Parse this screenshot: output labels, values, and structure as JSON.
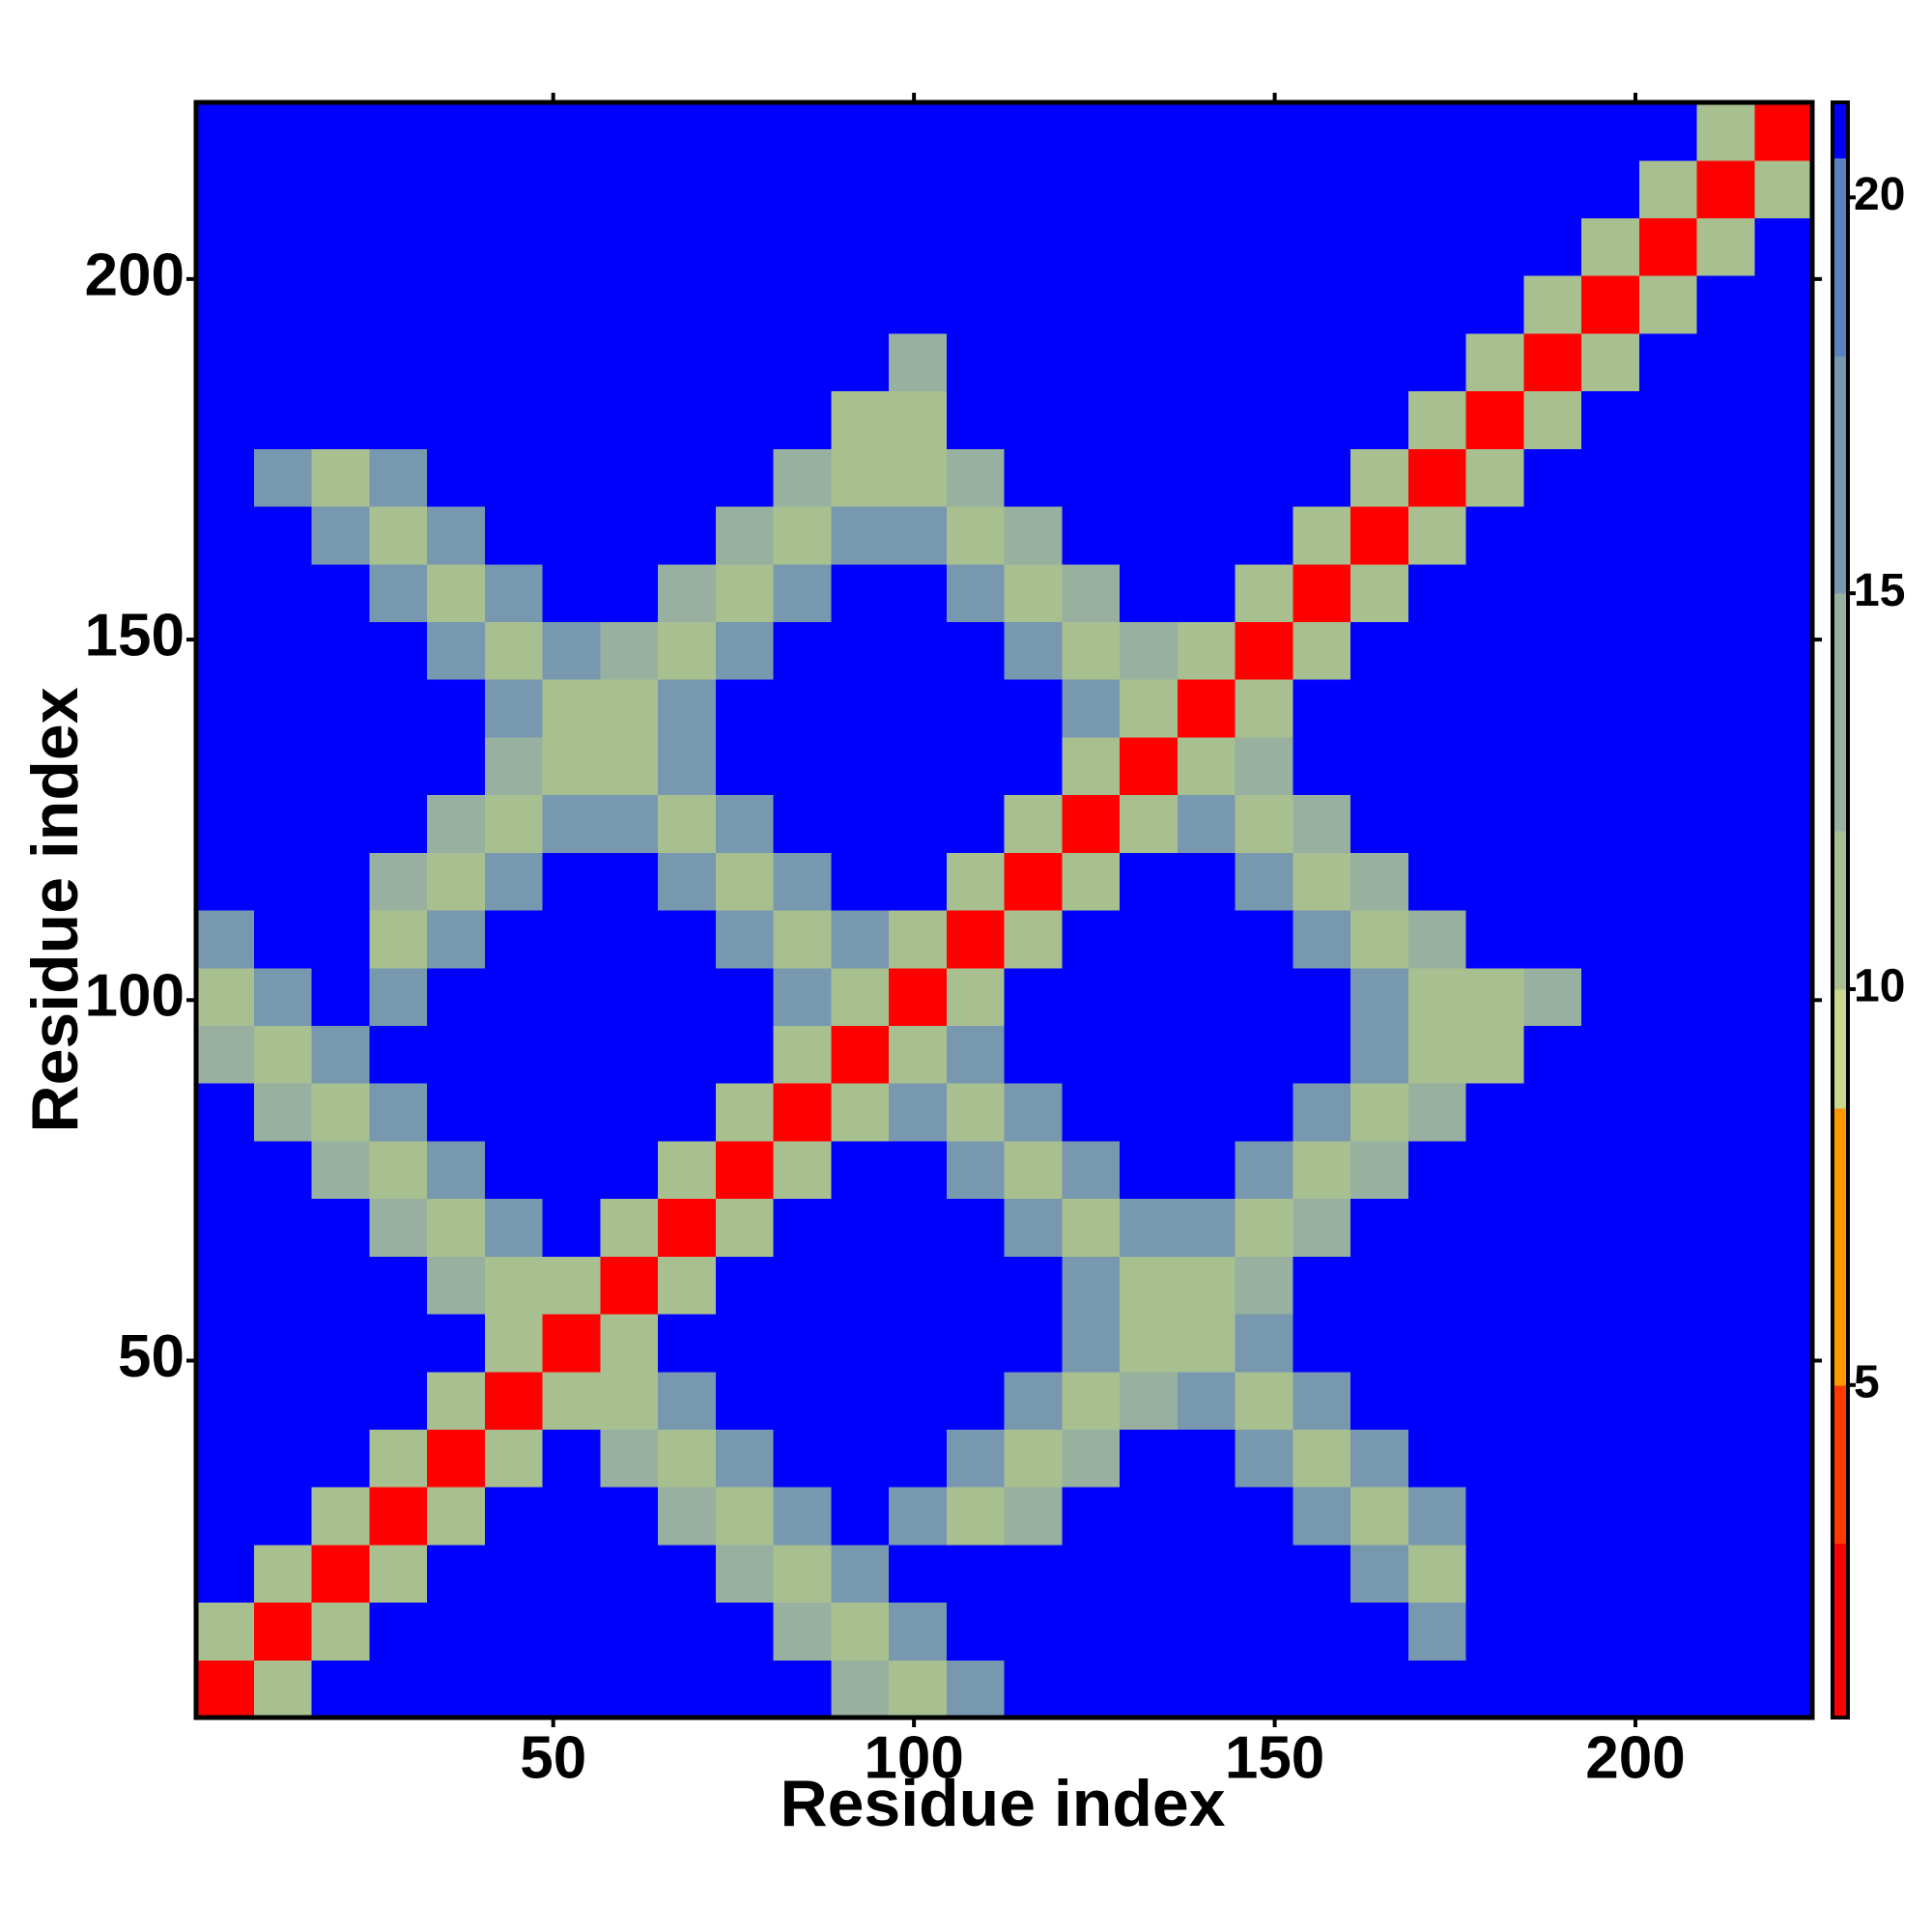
{
  "chart_data": {
    "type": "heatmap",
    "xlabel": "Residue index",
    "ylabel": "Residue index",
    "xlim": [
      0.5,
      224.5
    ],
    "ylim": [
      0.5,
      224.5
    ],
    "xticks": [
      50,
      100,
      150,
      200
    ],
    "yticks": [
      50,
      100,
      150,
      200
    ],
    "x_bins": [
      0.5,
      8.5,
      16.5,
      24.5,
      32.5,
      40.5,
      48.5,
      56.5,
      64.5,
      72.5,
      80.5,
      88.5,
      96.5,
      104.5,
      112.5,
      120.5,
      128.5,
      136.5,
      144.5,
      152.5,
      160.5,
      168.5,
      176.5,
      184.5,
      192.5,
      200.5,
      208.5,
      216.5,
      224.5
    ],
    "y_bins": [
      0.5,
      8.5,
      16.5,
      24.5,
      32.5,
      40.5,
      48.5,
      56.5,
      64.5,
      72.5,
      80.5,
      88.5,
      96.5,
      104.5,
      112.5,
      120.5,
      128.5,
      136.5,
      144.5,
      152.5,
      160.5,
      168.5,
      176.5,
      184.5,
      192.5,
      200.5,
      208.5,
      216.5,
      224.5
    ],
    "z": [
      [
        2,
        11,
        21,
        21,
        21,
        21,
        21,
        21,
        21,
        21,
        21,
        13,
        10,
        17,
        21,
        21,
        21,
        21,
        21,
        21,
        21,
        21,
        21,
        21,
        21,
        21,
        21,
        21
      ],
      [
        11,
        2,
        11,
        21,
        21,
        21,
        21,
        21,
        21,
        21,
        13,
        10,
        17,
        21,
        21,
        21,
        21,
        21,
        21,
        21,
        21,
        15,
        21,
        21,
        21,
        21,
        21,
        21
      ],
      [
        21,
        11,
        2,
        11,
        21,
        21,
        21,
        21,
        21,
        13,
        10,
        17,
        21,
        21,
        21,
        21,
        21,
        21,
        21,
        21,
        15,
        10,
        21,
        21,
        21,
        21,
        21,
        21
      ],
      [
        21,
        21,
        11,
        2,
        11,
        21,
        21,
        21,
        13,
        10,
        17,
        21,
        17,
        10,
        14,
        21,
        21,
        21,
        21,
        15,
        10,
        15,
        21,
        21,
        21,
        21,
        21,
        21
      ],
      [
        21,
        21,
        21,
        11,
        2,
        11,
        21,
        13,
        10,
        17,
        21,
        21,
        21,
        17,
        10,
        14,
        21,
        21,
        15,
        10,
        15,
        21,
        21,
        21,
        21,
        21,
        21,
        21
      ],
      [
        21,
        21,
        21,
        21,
        11,
        2,
        11,
        10,
        17,
        21,
        21,
        21,
        21,
        21,
        17,
        10,
        14,
        15,
        10,
        15,
        21,
        21,
        21,
        21,
        21,
        21,
        21,
        21
      ],
      [
        21,
        21,
        21,
        21,
        21,
        11,
        2,
        11,
        21,
        21,
        21,
        21,
        21,
        21,
        21,
        17,
        10,
        10,
        15,
        21,
        21,
        21,
        21,
        21,
        21,
        21,
        21,
        21
      ],
      [
        21,
        21,
        21,
        21,
        13,
        10,
        11,
        2,
        11,
        21,
        21,
        21,
        21,
        21,
        21,
        15,
        10,
        10,
        14,
        21,
        21,
        21,
        21,
        21,
        21,
        21,
        21,
        21
      ],
      [
        21,
        21,
        21,
        13,
        10,
        17,
        21,
        11,
        2,
        11,
        21,
        21,
        21,
        21,
        15,
        10,
        15,
        17,
        10,
        14,
        21,
        21,
        21,
        21,
        21,
        21,
        21,
        21
      ],
      [
        21,
        21,
        13,
        10,
        17,
        21,
        21,
        21,
        11,
        2,
        11,
        21,
        21,
        15,
        10,
        15,
        21,
        21,
        17,
        10,
        14,
        21,
        21,
        21,
        21,
        21,
        21,
        21
      ],
      [
        21,
        13,
        10,
        17,
        21,
        21,
        21,
        21,
        21,
        11,
        2,
        11,
        15,
        10,
        15,
        21,
        21,
        21,
        21,
        17,
        10,
        14,
        21,
        21,
        21,
        21,
        21,
        21
      ],
      [
        13,
        10,
        17,
        21,
        21,
        21,
        21,
        21,
        21,
        21,
        11,
        2,
        10,
        15,
        21,
        21,
        21,
        21,
        21,
        21,
        17,
        10,
        10,
        21,
        21,
        21,
        21,
        21
      ],
      [
        10,
        17,
        21,
        17,
        21,
        21,
        21,
        21,
        21,
        21,
        15,
        10,
        2,
        11,
        21,
        21,
        21,
        21,
        21,
        21,
        17,
        10,
        10,
        14,
        21,
        21,
        21,
        21
      ],
      [
        17,
        21,
        21,
        10,
        17,
        21,
        21,
        21,
        21,
        15,
        10,
        15,
        11,
        2,
        11,
        21,
        21,
        21,
        21,
        17,
        10,
        13,
        21,
        21,
        21,
        21,
        21,
        21
      ],
      [
        21,
        21,
        21,
        14,
        10,
        17,
        21,
        21,
        15,
        10,
        15,
        21,
        21,
        11,
        2,
        11,
        21,
        21,
        17,
        10,
        13,
        21,
        21,
        21,
        21,
        21,
        21,
        21
      ],
      [
        21,
        21,
        21,
        21,
        14,
        10,
        17,
        15,
        10,
        15,
        21,
        21,
        21,
        21,
        11,
        2,
        11,
        17,
        10,
        13,
        21,
        21,
        21,
        21,
        21,
        21,
        21,
        21
      ],
      [
        21,
        21,
        21,
        21,
        21,
        14,
        10,
        10,
        15,
        21,
        21,
        21,
        21,
        21,
        21,
        11,
        2,
        10,
        13,
        21,
        21,
        21,
        21,
        21,
        21,
        21,
        21,
        21
      ],
      [
        21,
        21,
        21,
        21,
        21,
        15,
        10,
        10,
        17,
        21,
        21,
        21,
        21,
        21,
        21,
        17,
        10,
        2,
        11,
        21,
        21,
        21,
        21,
        21,
        21,
        21,
        21,
        21
      ],
      [
        21,
        21,
        21,
        21,
        15,
        10,
        15,
        14,
        10,
        17,
        21,
        21,
        21,
        21,
        17,
        10,
        13,
        11,
        2,
        11,
        21,
        21,
        21,
        21,
        21,
        21,
        21,
        21
      ],
      [
        21,
        21,
        21,
        15,
        10,
        15,
        21,
        21,
        14,
        10,
        17,
        21,
        21,
        17,
        10,
        13,
        21,
        21,
        11,
        2,
        11,
        21,
        21,
        21,
        21,
        21,
        21,
        21
      ],
      [
        21,
        21,
        15,
        10,
        15,
        21,
        21,
        21,
        21,
        14,
        10,
        17,
        17,
        10,
        13,
        21,
        21,
        21,
        21,
        11,
        2,
        11,
        21,
        21,
        21,
        21,
        21,
        21
      ],
      [
        21,
        15,
        10,
        15,
        21,
        21,
        21,
        21,
        21,
        21,
        14,
        10,
        10,
        13,
        21,
        21,
        21,
        21,
        21,
        21,
        11,
        2,
        11,
        21,
        21,
        21,
        21,
        21
      ],
      [
        21,
        21,
        21,
        21,
        21,
        21,
        21,
        21,
        21,
        21,
        21,
        10,
        10,
        21,
        21,
        21,
        21,
        21,
        21,
        21,
        21,
        11,
        2,
        11,
        21,
        21,
        21,
        21
      ],
      [
        21,
        21,
        21,
        21,
        21,
        21,
        21,
        21,
        21,
        21,
        21,
        21,
        14,
        21,
        21,
        21,
        21,
        21,
        21,
        21,
        21,
        21,
        11,
        2,
        11,
        21,
        21,
        21
      ],
      [
        21,
        21,
        21,
        21,
        21,
        21,
        21,
        21,
        21,
        21,
        21,
        21,
        21,
        21,
        21,
        21,
        21,
        21,
        21,
        21,
        21,
        21,
        21,
        11,
        2,
        11,
        21,
        21
      ],
      [
        21,
        21,
        21,
        21,
        21,
        21,
        21,
        21,
        21,
        21,
        21,
        21,
        21,
        21,
        21,
        21,
        21,
        21,
        21,
        21,
        21,
        21,
        21,
        21,
        11,
        2,
        11,
        21
      ],
      [
        21,
        21,
        21,
        21,
        21,
        21,
        21,
        21,
        21,
        21,
        21,
        21,
        21,
        21,
        21,
        21,
        21,
        21,
        21,
        21,
        21,
        21,
        21,
        21,
        21,
        11,
        2,
        11
      ],
      [
        21,
        21,
        21,
        21,
        21,
        21,
        21,
        21,
        21,
        21,
        21,
        21,
        21,
        21,
        21,
        21,
        21,
        21,
        21,
        21,
        21,
        21,
        21,
        21,
        21,
        21,
        11,
        2
      ]
    ],
    "color_breaks": [
      0.8,
      3,
      5,
      8.5,
      10,
      12,
      15,
      18,
      20.5,
      21.2
    ],
    "colors": [
      "#ff0000",
      "#ff3a00",
      "#ff9900",
      "#c8d88c",
      "#a8c090",
      "#98b0a0",
      "#7898b0",
      "#5a82c0",
      "#0000ff"
    ],
    "colorbar_ticks": [
      5,
      10,
      15,
      20
    ]
  }
}
